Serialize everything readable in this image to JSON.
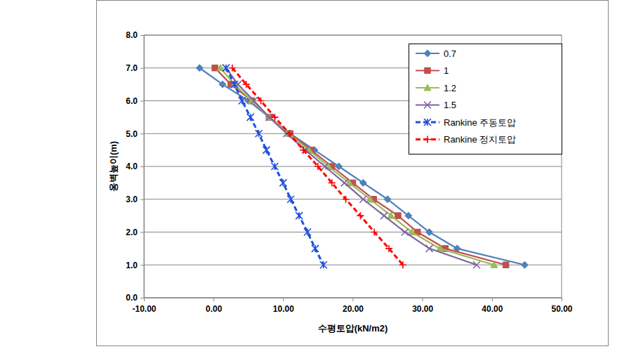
{
  "chart_data": {
    "type": "line",
    "x_label": "수평토압(kN/m2)",
    "y_label": "옹벽높이(m)",
    "xlim": [
      -10,
      50
    ],
    "xticks": [
      {
        "value": -10,
        "label": "-10.00"
      },
      {
        "value": 0,
        "label": "0.00"
      },
      {
        "value": 10,
        "label": "10.00"
      },
      {
        "value": 20,
        "label": "20.00"
      },
      {
        "value": 30,
        "label": "30.00"
      },
      {
        "value": 40,
        "label": "40.00"
      },
      {
        "value": 50,
        "label": "50.00"
      }
    ],
    "ylim": [
      0,
      8
    ],
    "yticks": [
      {
        "value": 0,
        "label": "0.0"
      },
      {
        "value": 1,
        "label": "1.0"
      },
      {
        "value": 2,
        "label": "2.0"
      },
      {
        "value": 3,
        "label": "3.0"
      },
      {
        "value": 4,
        "label": "4.0"
      },
      {
        "value": 5,
        "label": "5.0"
      },
      {
        "value": 6,
        "label": "6.0"
      },
      {
        "value": 7,
        "label": "7.0"
      },
      {
        "value": 8,
        "label": "8.0"
      }
    ],
    "grid": true,
    "legend": "top-right",
    "series": [
      {
        "name": "0.7",
        "color": "#4f81bd",
        "marker": "diamond",
        "line_style": "solid",
        "x": [
          -2.0,
          1.3,
          5.0,
          8.0,
          11.0,
          14.5,
          18.0,
          21.5,
          25.0,
          28.0,
          31.0,
          35.0,
          44.7
        ],
        "values": [
          7.0,
          6.5,
          6.0,
          5.5,
          5.0,
          4.5,
          4.0,
          3.5,
          3.0,
          2.5,
          2.0,
          1.5,
          1.0
        ]
      },
      {
        "name": "1",
        "color": "#c0504d",
        "marker": "square",
        "line_style": "solid",
        "x": [
          0.2,
          2.5,
          5.5,
          8.0,
          11.0,
          14.0,
          17.0,
          20.0,
          23.0,
          26.5,
          29.3,
          33.3,
          42.0
        ],
        "values": [
          7.0,
          6.5,
          6.0,
          5.5,
          5.0,
          4.5,
          4.0,
          3.5,
          3.0,
          2.5,
          2.0,
          1.5,
          1.0
        ]
      },
      {
        "name": "1.2",
        "color": "#9bbb59",
        "marker": "triangle",
        "line_style": "solid",
        "x": [
          1.0,
          3.0,
          5.5,
          8.0,
          10.8,
          13.7,
          16.5,
          19.5,
          22.5,
          25.5,
          28.5,
          32.5,
          40.3
        ],
        "values": [
          7.0,
          6.5,
          6.0,
          5.5,
          5.0,
          4.5,
          4.0,
          3.5,
          3.0,
          2.5,
          2.0,
          1.5,
          1.0
        ]
      },
      {
        "name": "1.5",
        "color": "#8064a2",
        "marker": "x",
        "line_style": "solid",
        "x": [
          1.8,
          3.5,
          5.8,
          8.0,
          10.5,
          13.2,
          16.0,
          18.8,
          21.5,
          24.5,
          27.5,
          31.0,
          37.8
        ],
        "values": [
          7.0,
          6.5,
          6.0,
          5.5,
          5.0,
          4.5,
          4.0,
          3.5,
          3.0,
          2.5,
          2.0,
          1.5,
          1.0
        ]
      },
      {
        "name": "Rankine 주동토압",
        "color": "#1f4fe0",
        "marker": "asterisk",
        "line_style": "dashed",
        "x": [
          1.8,
          3.0,
          4.1,
          5.3,
          6.5,
          7.6,
          8.8,
          10.0,
          11.1,
          12.3,
          13.5,
          14.6,
          15.8
        ],
        "values": [
          7.0,
          6.5,
          6.0,
          5.5,
          5.0,
          4.5,
          4.0,
          3.5,
          3.0,
          2.5,
          2.0,
          1.5,
          1.0
        ]
      },
      {
        "name": "Rankine 정지토압",
        "color": "#ff0000",
        "marker": "plus",
        "line_style": "dashed",
        "x": [
          2.7,
          4.7,
          6.8,
          8.8,
          10.9,
          12.9,
          15.0,
          17.0,
          19.0,
          21.1,
          23.1,
          25.2,
          27.2
        ],
        "values": [
          7.0,
          6.5,
          6.0,
          5.5,
          5.0,
          4.5,
          4.0,
          3.5,
          3.0,
          2.5,
          2.0,
          1.5,
          1.0
        ]
      }
    ]
  }
}
